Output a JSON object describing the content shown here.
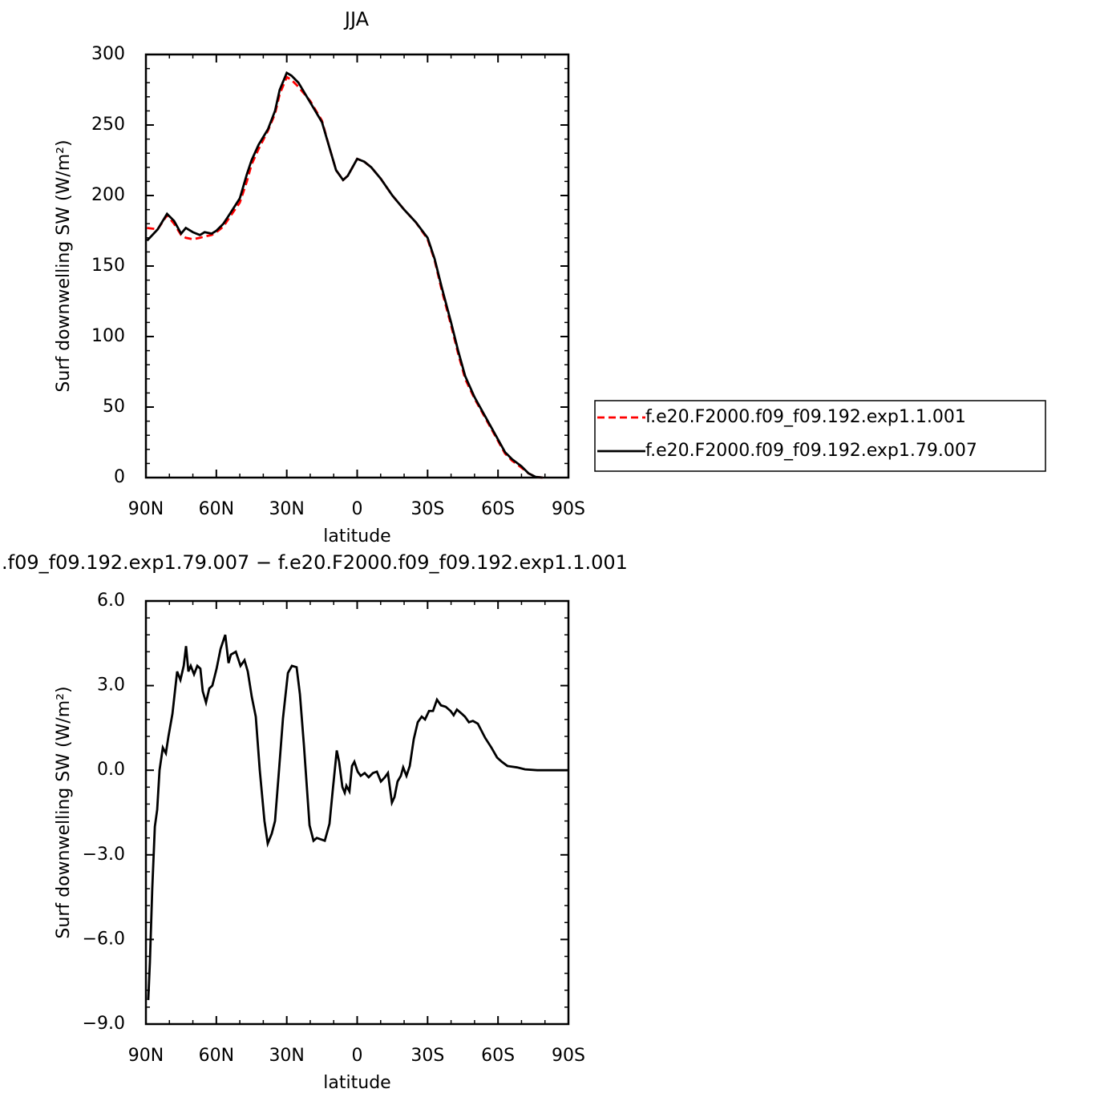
{
  "chart_data": [
    {
      "type": "line",
      "title": "JJA",
      "xlabel": "latitude",
      "ylabel": "Surf downwelling SW (W/m²)",
      "x": [
        89.5,
        85,
        81,
        78,
        75,
        73,
        70,
        67,
        65,
        62,
        60,
        57,
        55,
        50,
        47,
        45,
        42,
        38,
        35,
        33,
        30,
        28,
        25,
        20,
        15,
        12,
        9,
        6,
        4,
        2,
        0,
        -3,
        -6,
        -10,
        -15,
        -20,
        -25,
        -30,
        -33,
        -36,
        -40,
        -43,
        -46,
        -50,
        -55,
        -60,
        -63,
        -66,
        -70,
        -73,
        -76,
        -79
      ],
      "series": [
        {
          "name": "f.e20.F2000.f09_f09.192.exp1.1.001",
          "color": "#ff0000",
          "dashed": true,
          "values": [
            177,
            176,
            186,
            180,
            172,
            170,
            169,
            170,
            171,
            172,
            174,
            178,
            183,
            195,
            210,
            222,
            233,
            246,
            258,
            272,
            284,
            282,
            277,
            267,
            253,
            235,
            218,
            211,
            214,
            220,
            226,
            224,
            220,
            212,
            200,
            190,
            181,
            169,
            154,
            133,
            108,
            88,
            70,
            56,
            41,
            26,
            17,
            12,
            7,
            3,
            0.5,
            0
          ]
        },
        {
          "name": "f.e20.F2000.f09_f09.192.exp1.79.007",
          "color": "#000000",
          "dashed": false,
          "values": [
            168,
            176,
            187,
            182,
            173,
            177,
            174,
            172,
            174,
            173,
            175,
            180,
            185,
            198,
            215,
            225,
            236,
            247,
            260,
            275,
            287,
            285,
            280,
            266,
            252,
            235,
            218,
            211,
            214,
            220,
            226,
            224,
            220,
            212,
            200,
            190,
            181,
            170,
            155,
            135,
            110,
            90,
            72,
            57,
            42,
            27,
            18,
            13,
            8,
            3,
            0.5,
            0
          ]
        }
      ],
      "xlim": [
        90,
        -90
      ],
      "xticks": [
        {
          "value": 90,
          "label": "90N"
        },
        {
          "value": 60,
          "label": "60N"
        },
        {
          "value": 30,
          "label": "30N"
        },
        0,
        {
          "value": -30,
          "label": "30S"
        },
        {
          "value": -60,
          "label": "60S"
        },
        {
          "value": -90,
          "label": "90S"
        }
      ],
      "ylim": [
        0,
        300
      ],
      "yticks": [
        0,
        50,
        100,
        150,
        200,
        250,
        300
      ],
      "legend": "outside-right"
    },
    {
      "type": "line",
      "title": ".f09_f09.192.exp1.79.007 − f.e20.F2000.f09_f09.192.exp1.1.001",
      "xlabel": "latitude",
      "ylabel": "Surf downwelling SW (W/m²)",
      "x": [
        89,
        88.3,
        87.3,
        86.2,
        85.2,
        84.2,
        82.8,
        81.5,
        80.4,
        78.7,
        76.7,
        75.3,
        73.9,
        72.9,
        71.9,
        70.9,
        69.5,
        68.1,
        66.8,
        65.8,
        64.4,
        63,
        61.7,
        59.9,
        58.2,
        56.2,
        54.8,
        53.8,
        51.7,
        49.7,
        48,
        46.6,
        44.9,
        43.2,
        41.5,
        39.5,
        38.1,
        36.4,
        35,
        33.3,
        31.6,
        29.5,
        27.8,
        25.8,
        24.4,
        22.7,
        20.3,
        18.6,
        17.2,
        15.5,
        13.8,
        11.8,
        10.4,
        8.7,
        7.7,
        6.3,
        5.3,
        4.6,
        3.3,
        2.2,
        1.2,
        -0.2,
        -1.5,
        -3.2,
        -4.9,
        -6.7,
        -8.4,
        -10.1,
        -11.8,
        -13.1,
        -14.8,
        -15.9,
        -17.2,
        -18.6,
        -19.6,
        -21,
        -22.4,
        -24.1,
        -25.8,
        -27.5,
        -28.9,
        -30.6,
        -32.3,
        -34,
        -35.7,
        -37.7,
        -39.8,
        -41.1,
        -42.5,
        -44.6,
        -45.9,
        -47.6,
        -49.3,
        -51.4,
        -54.5,
        -57.2,
        -59.6,
        -61.6,
        -64,
        -68.1,
        -71.5,
        -76.7,
        -90
      ],
      "values": [
        -8.15,
        -6.8,
        -4.2,
        -2.0,
        -1.4,
        0.0,
        0.8,
        0.6,
        1.2,
        2.0,
        3.5,
        3.2,
        3.7,
        4.4,
        3.5,
        3.7,
        3.4,
        3.7,
        3.6,
        2.8,
        2.4,
        2.9,
        3.0,
        3.6,
        4.3,
        4.8,
        3.8,
        4.1,
        4.2,
        3.7,
        3.9,
        3.5,
        2.6,
        1.9,
        0.0,
        -1.8,
        -2.6,
        -2.25,
        -1.8,
        0.0,
        1.85,
        3.45,
        3.7,
        3.65,
        2.7,
        0.9,
        -1.95,
        -2.5,
        -2.4,
        -2.45,
        -2.5,
        -1.9,
        -0.7,
        0.7,
        0.3,
        -0.6,
        -0.8,
        -0.55,
        -0.75,
        0.15,
        0.3,
        -0.05,
        -0.2,
        -0.1,
        -0.25,
        -0.1,
        -0.05,
        -0.4,
        -0.25,
        -0.1,
        -1.15,
        -0.95,
        -0.4,
        -0.2,
        0.1,
        -0.2,
        0.15,
        1.1,
        1.7,
        1.9,
        1.8,
        2.1,
        2.1,
        2.5,
        2.3,
        2.25,
        2.1,
        1.95,
        2.15,
        2.0,
        1.9,
        1.7,
        1.75,
        1.65,
        1.15,
        0.8,
        0.45,
        0.3,
        0.15,
        0.1,
        0.03,
        0,
        0
      ],
      "color": "#000000",
      "xlim": [
        90,
        -90
      ],
      "xticks": [
        {
          "value": 90,
          "label": "90N"
        },
        {
          "value": 60,
          "label": "60N"
        },
        {
          "value": 30,
          "label": "30N"
        },
        0,
        {
          "value": -30,
          "label": "30S"
        },
        {
          "value": -60,
          "label": "60S"
        },
        {
          "value": -90,
          "label": "90S"
        }
      ],
      "ylim": [
        -9,
        6
      ],
      "yticks": [
        {
          "value": -9,
          "label": "−9.0"
        },
        {
          "value": -6,
          "label": "−6.0"
        },
        {
          "value": -3,
          "label": "−3.0"
        },
        {
          "value": 0,
          "label": "0.0"
        },
        {
          "value": 3,
          "label": "3.0"
        },
        {
          "value": 6,
          "label": "6.0"
        }
      ]
    }
  ]
}
